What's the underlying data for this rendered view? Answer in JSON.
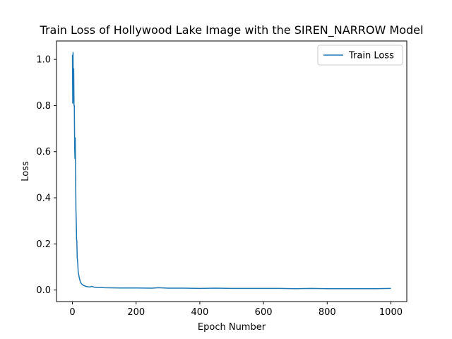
{
  "chart_data": {
    "type": "line",
    "title": "Train Loss of Hollywood Lake Image with the SIREN_NARROW Model",
    "xlabel": "Epoch Number",
    "ylabel": "Loss",
    "xlim": [
      -50,
      1050
    ],
    "ylim": [
      -0.05,
      1.08
    ],
    "xticks": [
      0,
      200,
      400,
      600,
      800,
      1000
    ],
    "yticks": [
      0.0,
      0.2,
      0.4,
      0.6,
      0.8,
      1.0
    ],
    "xtick_labels": [
      "0",
      "200",
      "400",
      "600",
      "800",
      "1000"
    ],
    "ytick_labels": [
      "0.0",
      "0.2",
      "0.4",
      "0.6",
      "0.8",
      "1.0"
    ],
    "grid": false,
    "legend_position": "top-right",
    "series": [
      {
        "name": "Train Loss",
        "color": "#1f77b4",
        "x": [
          0,
          1,
          2,
          3,
          4,
          5,
          6,
          7,
          8,
          9,
          10,
          11,
          12,
          13,
          14,
          15,
          16,
          17,
          18,
          20,
          22,
          25,
          28,
          30,
          35,
          40,
          45,
          50,
          55,
          60,
          70,
          80,
          90,
          100,
          150,
          200,
          250,
          270,
          300,
          350,
          400,
          450,
          500,
          550,
          600,
          650,
          700,
          750,
          800,
          850,
          900,
          950,
          1000
        ],
        "y": [
          1.02,
          0.81,
          1.03,
          0.82,
          0.96,
          0.8,
          0.8,
          0.62,
          0.57,
          0.66,
          0.5,
          0.35,
          0.3,
          0.22,
          0.21,
          0.14,
          0.13,
          0.11,
          0.08,
          0.065,
          0.05,
          0.035,
          0.028,
          0.025,
          0.02,
          0.017,
          0.015,
          0.014,
          0.013,
          0.016,
          0.012,
          0.011,
          0.011,
          0.01,
          0.009,
          0.009,
          0.008,
          0.01,
          0.008,
          0.008,
          0.007,
          0.008,
          0.007,
          0.007,
          0.007,
          0.007,
          0.006,
          0.007,
          0.006,
          0.006,
          0.006,
          0.006,
          0.007
        ]
      }
    ]
  }
}
